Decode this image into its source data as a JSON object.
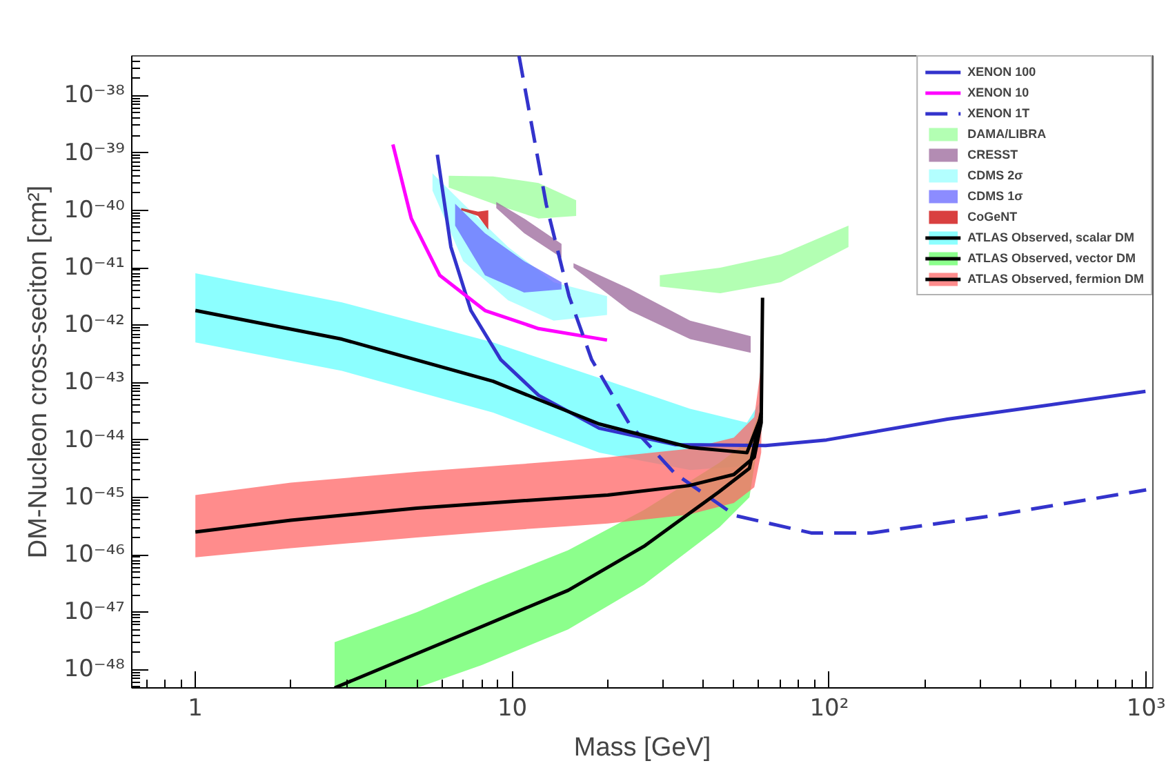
{
  "chart_data": {
    "type": "line",
    "xlabel": "Mass [GeV]",
    "ylabel": "DM-Nucleon cross-seciton [cm²]",
    "log": "xy",
    "grid": false,
    "legend": "top right",
    "marker": "none",
    "xlim": [
      0.63,
      1050
    ],
    "ylim": [
      4.8e-49,
      4.9e-38
    ],
    "xticks": [
      1,
      10,
      {
        "value": 100,
        "label": "10²"
      },
      {
        "value": 1000,
        "label": "10³"
      }
    ],
    "yticks": [
      {
        "value": 1e-48,
        "label": "10⁻⁴⁸"
      },
      {
        "value": 1e-47,
        "label": "10⁻⁴⁷"
      },
      {
        "value": 1e-46,
        "label": "10⁻⁴⁶"
      },
      {
        "value": 1e-45,
        "label": "10⁻⁴⁵"
      },
      {
        "value": 1e-44,
        "label": "10⁻⁴⁴"
      },
      {
        "value": 1e-43,
        "label": "10⁻⁴³"
      },
      {
        "value": 1e-42,
        "label": "10⁻⁴²"
      },
      {
        "value": 1e-41,
        "label": "10⁻⁴¹"
      },
      {
        "value": 1e-40,
        "label": "10⁻⁴⁰"
      },
      {
        "value": 1e-39,
        "label": "10⁻³⁹"
      },
      {
        "value": 1e-38,
        "label": "10⁻³⁸"
      }
    ],
    "series": [
      {
        "name": "XENON 100",
        "color": "#3333cc",
        "line_style": "solid",
        "x": [
          5.8,
          6.4,
          7.4,
          9.2,
          12.1,
          18.8,
          32.6,
          63,
          98,
          236,
          995
        ],
        "values": [
          9.3e-40,
          2.3e-41,
          1.8e-42,
          2.5e-43,
          6e-44,
          1.6e-44,
          8.3e-45,
          8e-45,
          1e-44,
          2.3e-44,
          7e-44
        ]
      },
      {
        "name": "XENON 10",
        "color": "#ff00ff",
        "line_style": "solid",
        "x": [
          4.2,
          4.8,
          5.9,
          8.2,
          12.1,
          19.9
        ],
        "values": [
          1.4e-39,
          7.2e-41,
          7.4e-42,
          1.8e-42,
          8.7e-43,
          5.5e-43
        ]
      },
      {
        "name": "XENON 1T",
        "color": "#3333cc",
        "line_style": "dashed",
        "x": [
          10.5,
          12.8,
          15.1,
          17.8,
          23.4,
          32.6,
          50.6,
          87.7,
          136,
          328,
          1000
        ],
        "values": [
          4.9e-38,
          1.26e-40,
          3.2e-42,
          2.5e-43,
          1.9e-44,
          2.6e-45,
          4.8e-46,
          2.4e-46,
          2.4e-46,
          4.8e-46,
          1.35e-45
        ]
      },
      {
        "name": "DAMA/LIBRA",
        "type": "area",
        "color": "#99ff99",
        "x": [
          6.3,
          8.7,
          12.1,
          15.9
        ],
        "values": [
          null,
          null,
          null,
          null
        ],
        "upper": [
          4e-40,
          3.9e-40,
          3e-40,
          1.5e-40
        ],
        "lower": [
          2.5e-40,
          1.3e-40,
          7.2e-41,
          8e-41
        ]
      },
      {
        "type": "area",
        "color": "#99ff99",
        "x": [
          29.2,
          45.3,
          70.4,
          115
        ],
        "values": [
          null,
          null,
          null,
          null
        ],
        "upper": [
          7.4e-42,
          1e-41,
          1.7e-41,
          5.4e-41
        ],
        "lower": [
          4.7e-42,
          3.6e-42,
          5.6e-42,
          2.3e-41
        ]
      },
      {
        "name": "CRESST",
        "type": "area",
        "color": "#996699",
        "x": [
          8.9,
          10.9,
          14.3
        ],
        "values": [
          null,
          null,
          null
        ],
        "upper": [
          1.4e-40,
          7.2e-41,
          2.6e-41
        ],
        "lower": [
          1.1e-40,
          4e-41,
          1.5e-41
        ]
      },
      {
        "type": "area",
        "color": "#996699",
        "x": [
          15.6,
          23.4,
          36.4,
          56.5
        ],
        "values": [
          null,
          null,
          null,
          null
        ],
        "upper": [
          1.2e-41,
          4.3e-42,
          1.2e-42,
          6.4e-43
        ],
        "lower": [
          1e-41,
          1.8e-42,
          5.7e-43,
          3.3e-43
        ]
      },
      {
        "name": "CDMS 2σ",
        "type": "area",
        "color": "#99ffff",
        "x": [
          5.6,
          7,
          9.7,
          13.5,
          19.9
        ],
        "values": [
          null,
          null,
          null,
          null,
          null
        ],
        "upper": [
          4.4e-40,
          1.3e-40,
          2.3e-41,
          5.6e-42,
          3.2e-42
        ],
        "lower": [
          2.2e-40,
          1.3e-41,
          2.7e-42,
          1.2e-42,
          1.5e-42
        ]
      },
      {
        "name": "CDMS 1σ",
        "type": "area",
        "color": "#6666ff",
        "x": [
          6.6,
          8.2,
          10.9,
          14.3
        ],
        "values": [
          null,
          null,
          null,
          null
        ],
        "upper": [
          1.3e-40,
          4e-41,
          1.3e-41,
          5.6e-42
        ],
        "lower": [
          5.4e-41,
          7.4e-42,
          3.7e-42,
          4.2e-42
        ]
      },
      {
        "name": "CoGeNT",
        "type": "area",
        "color": "#cc0000",
        "x": [
          6.9,
          7.8,
          8.4
        ],
        "values": [
          null,
          null,
          null
        ],
        "upper": [
          1.1e-40,
          9.5e-41,
          1e-40
        ],
        "lower": [
          1e-40,
          8e-41,
          4.6e-41
        ]
      },
      {
        "name": "ATLAS Observed, scalar DM",
        "type": "area",
        "color": "#66ffff",
        "x": [
          1,
          2.9,
          8.7,
          18.8,
          36.4,
          55,
          61
        ],
        "values": [
          null,
          null,
          null,
          null,
          null,
          null,
          null
        ],
        "upper": [
          8e-42,
          2.5e-42,
          5e-43,
          1.2e-43,
          3.5e-44,
          2e-44,
          5e-44
        ],
        "lower": [
          5e-43,
          1.6e-43,
          3e-44,
          6e-45,
          3e-45,
          3.5e-45,
          1.5e-44
        ]
      },
      {
        "color": "#000000",
        "line_style": "solid",
        "x": [
          1,
          2.9,
          8.7,
          18.8,
          36.4,
          55,
          61
        ],
        "values": [
          1.8e-42,
          5.7e-43,
          1.05e-43,
          1.9e-44,
          7.4e-45,
          6e-45,
          2.6e-44
        ]
      },
      {
        "name": "ATLAS Observed, vector DM",
        "type": "area",
        "color": "#66ff66",
        "x": [
          2.75,
          5,
          8,
          15,
          26,
          45,
          56,
          61
        ],
        "values": [
          null,
          null,
          null,
          null,
          null,
          null,
          null,
          null
        ],
        "upper": [
          3e-48,
          1e-47,
          3e-47,
          1.2e-46,
          6e-46,
          4e-45,
          1e-44,
          4e-44
        ],
        "lower": [
          4.8e-49,
          4.8e-49,
          1.2e-48,
          5e-48,
          3e-47,
          3e-46,
          1e-45,
          2e-44
        ]
      },
      {
        "color": "#000000",
        "line_style": "solid",
        "x": [
          2.75,
          5,
          8,
          15,
          26,
          45,
          56,
          61
        ],
        "values": [
          4.8e-49,
          1.9e-48,
          5.6e-48,
          2.4e-47,
          1.4e-46,
          1.26e-45,
          3.2e-45,
          3e-44
        ]
      },
      {
        "name": "ATLAS Observed, fermion DM",
        "type": "area",
        "color": "#ff6666",
        "x": [
          1,
          2,
          5,
          10,
          20,
          36,
          50,
          58,
          61,
          61.6
        ],
        "values": [
          null,
          null,
          null,
          null,
          null,
          null,
          null,
          null,
          null,
          null
        ],
        "upper": [
          1.1e-45,
          1.8e-45,
          2.8e-45,
          3.7e-45,
          5e-45,
          7e-45,
          1.1e-44,
          2.5e-44,
          2e-43,
          3.5e-42
        ],
        "lower": [
          9e-47,
          1.3e-46,
          2e-46,
          2.7e-46,
          3.5e-46,
          5e-46,
          8e-46,
          1.5e-45,
          6e-45,
          2.5e-42
        ]
      },
      {
        "color": "#000000",
        "line_style": "solid",
        "x": [
          1,
          2,
          5,
          10,
          20,
          36,
          50,
          58,
          61,
          61.6
        ],
        "values": [
          2.5e-46,
          4e-46,
          6.5e-46,
          8.5e-46,
          1.1e-45,
          1.6e-45,
          2.5e-45,
          5e-45,
          2e-44,
          3e-42
        ]
      }
    ]
  }
}
